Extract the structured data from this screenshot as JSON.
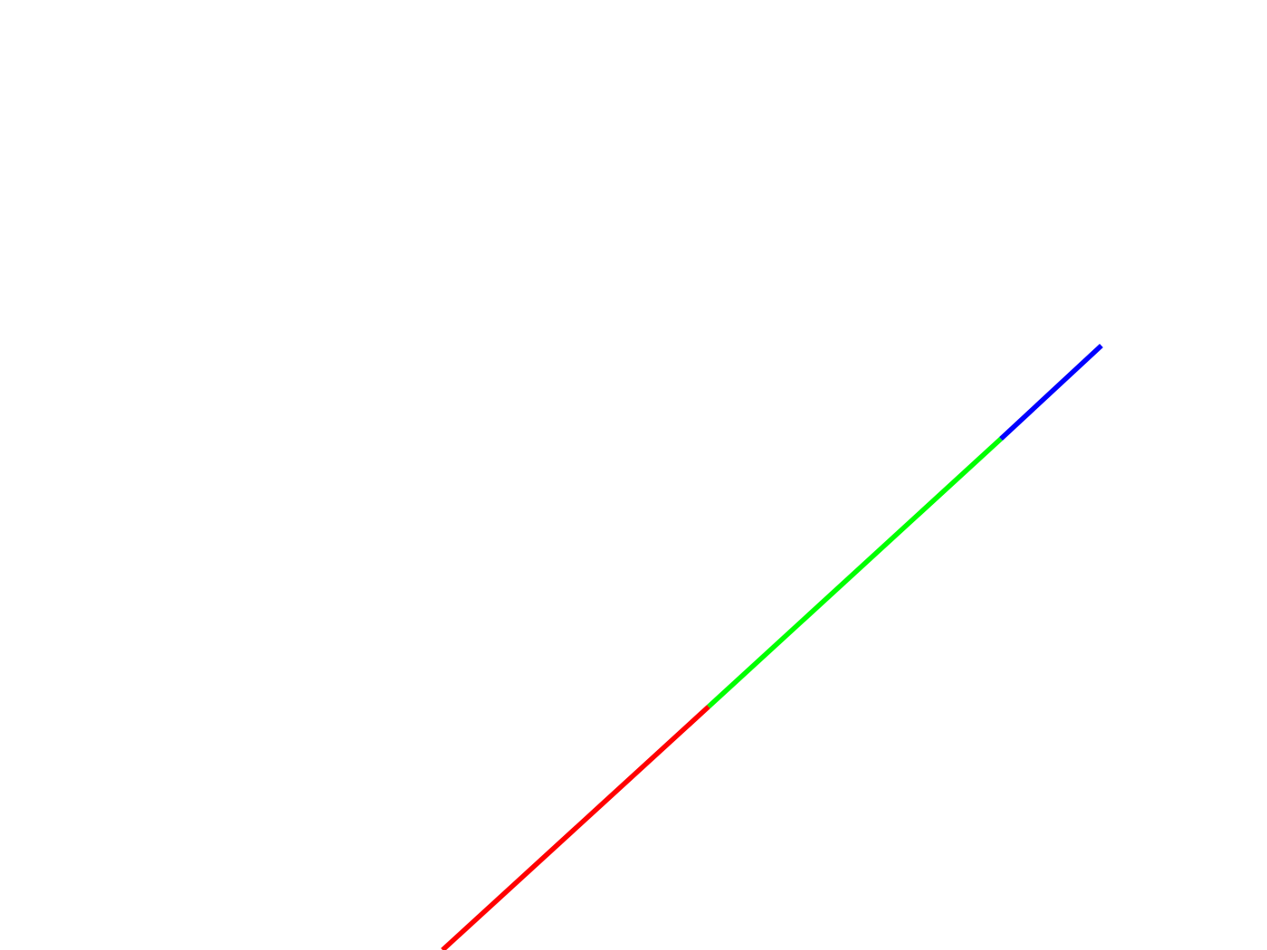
{
  "diagram": {
    "background_color": "#ffffff",
    "segments": [
      {
        "name": "red-segment",
        "color": "#ff0000"
      },
      {
        "name": "green-segment",
        "color": "#00ff00"
      },
      {
        "name": "blue-segment",
        "color": "#0000ff"
      }
    ]
  }
}
